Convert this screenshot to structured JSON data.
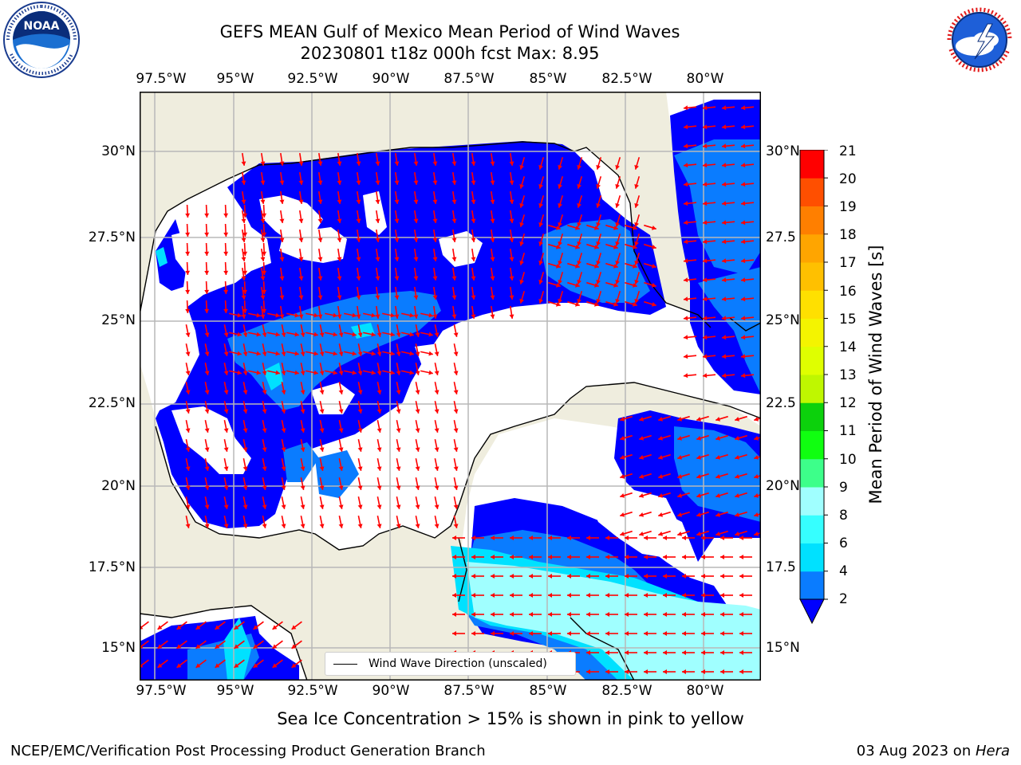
{
  "header": {
    "title_line1": "GEFS MEAN Gulf of Mexico Mean Period of Wind Waves",
    "title_line2": "20230801 t18z 000h fcst   Max: 8.95"
  },
  "logos": {
    "noaa": {
      "text": "NOAA",
      "ring_text": "NATIONAL OCEANIC AND ATMOSPHERIC ADMINISTRATION · U.S. DEPARTMENT OF COMMERCE"
    },
    "nws": {
      "ring_text": "NATIONAL WEATHER SERVICE"
    }
  },
  "map": {
    "x_ticks": [
      "97.5°W",
      "95°W",
      "92.5°W",
      "90°W",
      "87.5°W",
      "85°W",
      "82.5°W",
      "80°W"
    ],
    "y_ticks_left": [
      "30°N",
      "27.5°N",
      "25°N",
      "22.5°N",
      "20°N",
      "17.5°N",
      "15°N"
    ],
    "y_ticks_right": [
      "30°N",
      "27.5",
      "25°N",
      "22.5",
      "20°N",
      "17.5",
      "15°N"
    ],
    "legend_label": "Wind Wave Direction (unscaled)"
  },
  "colorbar": {
    "label": "Mean Period of Wind Waves [s]",
    "ticks": [
      "21",
      "20",
      "19",
      "18",
      "17",
      "16",
      "15",
      "14",
      "13",
      "12",
      "11",
      "10",
      "9",
      "8",
      "6",
      "4",
      "2"
    ],
    "levels": [
      2,
      4,
      6,
      8,
      9,
      10,
      11,
      12,
      13,
      14,
      15,
      16,
      17,
      18,
      19,
      20,
      21
    ],
    "colors": [
      "#0a7cff",
      "#00e1ff",
      "#36ffff",
      "#a0ffff",
      "#3dff8a",
      "#10ff10",
      "#0cd10c",
      "#bff700",
      "#dfff00",
      "#f4f400",
      "#ffe000",
      "#ffc000",
      "#ffa500",
      "#ff7f00",
      "#ff4f00",
      "#ff0000"
    ],
    "under_color": "#0000ff"
  },
  "footer": {
    "sea_ice_note": "Sea Ice Concentration > 15% is shown in pink to yellow",
    "credit": "NCEP/EMC/Verification Post Processing Product Generation Branch",
    "date": "03 Aug 2023 on ",
    "machine": "Hera"
  }
}
